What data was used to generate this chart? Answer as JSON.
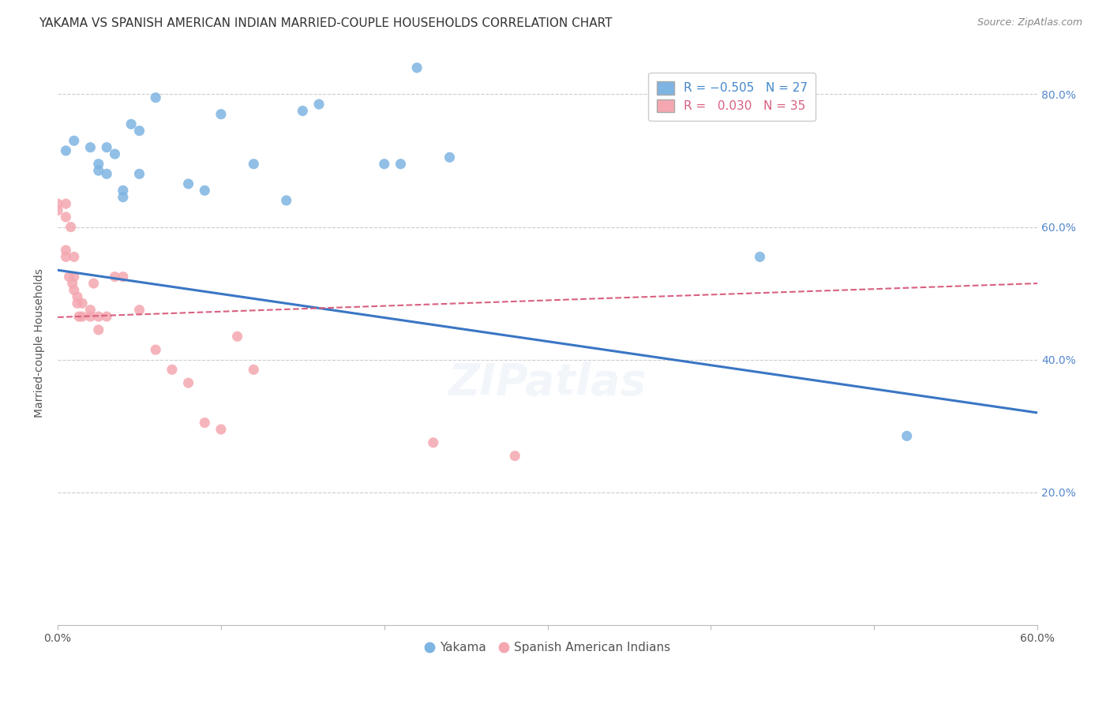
{
  "title": "YAKAMA VS SPANISH AMERICAN INDIAN MARRIED-COUPLE HOUSEHOLDS CORRELATION CHART",
  "source": "Source: ZipAtlas.com",
  "ylabel": "Married-couple Households",
  "xlim": [
    0.0,
    0.6
  ],
  "ylim": [
    0.0,
    0.85
  ],
  "xticks": [
    0.0,
    0.1,
    0.2,
    0.3,
    0.4,
    0.5,
    0.6
  ],
  "yticks": [
    0.0,
    0.2,
    0.4,
    0.6,
    0.8
  ],
  "right_ytick_labels": [
    "",
    "20.0%",
    "40.0%",
    "60.0%",
    "80.0%"
  ],
  "xtick_labels": [
    "0.0%",
    "",
    "",
    "",
    "",
    "",
    "60.0%"
  ],
  "grid_color": "#cccccc",
  "background_color": "#ffffff",
  "watermark": "ZIPatlas",
  "blue_R": -0.505,
  "blue_N": 27,
  "pink_R": 0.03,
  "pink_N": 35,
  "blue_color": "#7EB4E2",
  "pink_color": "#F4A7B0",
  "blue_line_color": "#3A76C4",
  "pink_line_color": "#D96080",
  "blue_points_x": [
    0.005,
    0.01,
    0.02,
    0.025,
    0.025,
    0.03,
    0.03,
    0.035,
    0.04,
    0.04,
    0.045,
    0.05,
    0.05,
    0.06,
    0.08,
    0.09,
    0.1,
    0.12,
    0.14,
    0.15,
    0.16,
    0.2,
    0.21,
    0.22,
    0.24,
    0.43,
    0.52
  ],
  "blue_points_y": [
    0.715,
    0.73,
    0.72,
    0.695,
    0.685,
    0.72,
    0.68,
    0.71,
    0.645,
    0.655,
    0.755,
    0.745,
    0.68,
    0.795,
    0.665,
    0.655,
    0.77,
    0.695,
    0.64,
    0.775,
    0.785,
    0.695,
    0.695,
    0.84,
    0.705,
    0.555,
    0.285
  ],
  "pink_points_x": [
    0.0,
    0.0,
    0.005,
    0.005,
    0.005,
    0.005,
    0.007,
    0.008,
    0.009,
    0.01,
    0.01,
    0.01,
    0.012,
    0.012,
    0.013,
    0.015,
    0.015,
    0.02,
    0.02,
    0.022,
    0.025,
    0.025,
    0.03,
    0.035,
    0.04,
    0.05,
    0.06,
    0.07,
    0.08,
    0.09,
    0.1,
    0.11,
    0.12,
    0.23,
    0.28
  ],
  "pink_points_y": [
    0.635,
    0.625,
    0.635,
    0.615,
    0.565,
    0.555,
    0.525,
    0.6,
    0.515,
    0.555,
    0.525,
    0.505,
    0.495,
    0.485,
    0.465,
    0.485,
    0.465,
    0.475,
    0.465,
    0.515,
    0.465,
    0.445,
    0.465,
    0.525,
    0.525,
    0.475,
    0.415,
    0.385,
    0.365,
    0.305,
    0.295,
    0.435,
    0.385,
    0.275,
    0.255
  ],
  "blue_trendline_x": [
    0.0,
    0.6
  ],
  "blue_trendline_y": [
    0.535,
    0.32
  ],
  "pink_trendline_x": [
    0.0,
    0.6
  ],
  "pink_trendline_y": [
    0.464,
    0.515
  ],
  "title_fontsize": 11,
  "label_fontsize": 10,
  "tick_fontsize": 10,
  "source_fontsize": 9,
  "watermark_fontsize": 40,
  "watermark_alpha": 0.1,
  "watermark_color": "#88AADD"
}
